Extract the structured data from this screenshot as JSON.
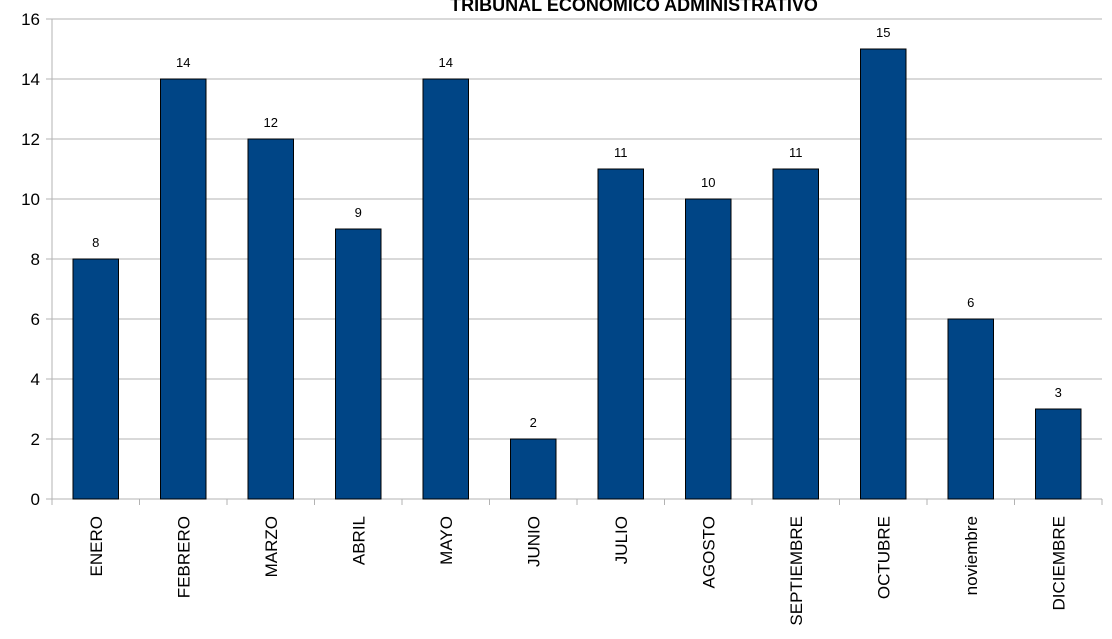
{
  "chart_data": {
    "type": "bar",
    "title": "TRIBUNAL ECONOMICO ADMINISTRATIVO",
    "xlabel": "",
    "ylabel": "",
    "categories": [
      "ENERO",
      "FEBRERO",
      "MARZO",
      "ABRIL",
      "MAYO",
      "JUNIO",
      "JULIO",
      "AGOSTO",
      "SEPTIEMBRE",
      "OCTUBRE",
      "noviembre",
      "DICIEMBRE"
    ],
    "values": [
      8,
      14,
      12,
      9,
      14,
      2,
      11,
      10,
      11,
      15,
      6,
      3
    ],
    "ylim": [
      0,
      16
    ],
    "yticks": [
      "0",
      "2",
      "4",
      "6",
      "8",
      "10",
      "12",
      "14",
      "16"
    ],
    "grid": true,
    "data_labels": true,
    "legend": "none",
    "bar_color": "#004586",
    "bar_outline": "#000000",
    "grid_color": "#b3b3b3"
  }
}
